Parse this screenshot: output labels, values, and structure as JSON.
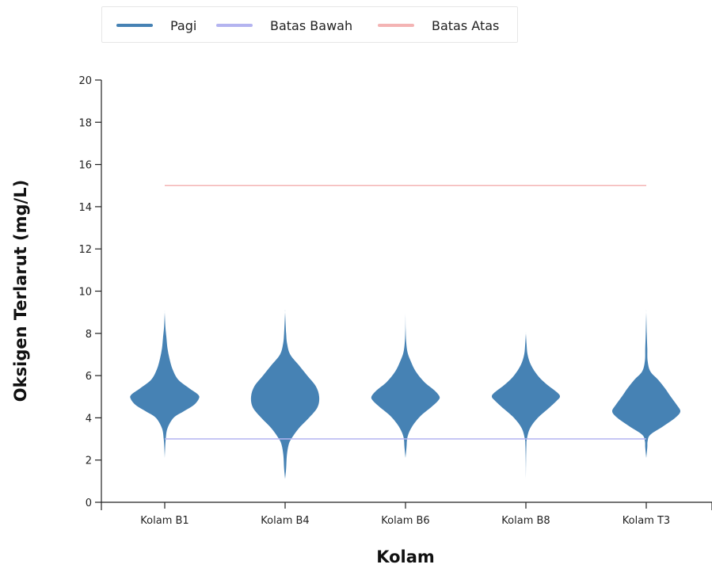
{
  "legend": {
    "items": [
      {
        "label": "Pagi",
        "color": "#4682b4"
      },
      {
        "label": "Batas Bawah",
        "color": "#b4b4f0"
      },
      {
        "label": "Batas Atas",
        "color": "#f4b4b4"
      }
    ]
  },
  "chart_data": {
    "type": "violin",
    "xlabel": "Kolam",
    "ylabel": "Oksigen Terlarut (mg/L)",
    "categories": [
      "Kolam B1",
      "Kolam B4",
      "Kolam B6",
      "Kolam B8",
      "Kolam T3"
    ],
    "ylim": [
      0,
      20
    ],
    "yticks": [
      0,
      2,
      4,
      6,
      8,
      10,
      12,
      14,
      16,
      18,
      20
    ],
    "series": [
      {
        "name": "Pagi",
        "color": "#4682b4",
        "violins": [
          {
            "category": "Kolam B1",
            "min": 2.1,
            "max": 9.0,
            "profile": [
              [
                2.1,
                0.0
              ],
              [
                2.5,
                0.01
              ],
              [
                3.0,
                0.03
              ],
              [
                3.5,
                0.08
              ],
              [
                4.0,
                0.26
              ],
              [
                4.3,
                0.55
              ],
              [
                4.6,
                0.85
              ],
              [
                4.9,
                1.0
              ],
              [
                5.1,
                0.98
              ],
              [
                5.4,
                0.72
              ],
              [
                5.8,
                0.4
              ],
              [
                6.3,
                0.23
              ],
              [
                6.8,
                0.14
              ],
              [
                7.3,
                0.08
              ],
              [
                7.8,
                0.05
              ],
              [
                8.3,
                0.02
              ],
              [
                9.0,
                0.0
              ]
            ]
          },
          {
            "category": "Kolam B4",
            "min": 1.1,
            "max": 9.0,
            "profile": [
              [
                1.1,
                0.0
              ],
              [
                1.6,
                0.03
              ],
              [
                2.2,
                0.05
              ],
              [
                2.7,
                0.1
              ],
              [
                3.0,
                0.18
              ],
              [
                3.5,
                0.4
              ],
              [
                4.0,
                0.7
              ],
              [
                4.5,
                0.95
              ],
              [
                5.0,
                1.0
              ],
              [
                5.5,
                0.9
              ],
              [
                6.0,
                0.65
              ],
              [
                6.5,
                0.4
              ],
              [
                7.0,
                0.15
              ],
              [
                7.5,
                0.06
              ],
              [
                8.0,
                0.03
              ],
              [
                9.0,
                0.0
              ]
            ]
          },
          {
            "category": "Kolam B6",
            "min": 2.1,
            "max": 9.0,
            "profile": [
              [
                2.1,
                0.0
              ],
              [
                2.6,
                0.03
              ],
              [
                3.1,
                0.06
              ],
              [
                3.6,
                0.2
              ],
              [
                4.1,
                0.45
              ],
              [
                4.5,
                0.75
              ],
              [
                4.8,
                0.95
              ],
              [
                5.0,
                1.0
              ],
              [
                5.3,
                0.85
              ],
              [
                5.7,
                0.55
              ],
              [
                6.2,
                0.3
              ],
              [
                6.7,
                0.15
              ],
              [
                7.1,
                0.06
              ],
              [
                7.6,
                0.02
              ],
              [
                8.2,
                0.005
              ],
              [
                9.0,
                0.0
              ]
            ]
          },
          {
            "category": "Kolam B8",
            "min": 1.1,
            "max": 8.0,
            "profile": [
              [
                1.1,
                0.0
              ],
              [
                2.0,
                0.005
              ],
              [
                2.7,
                0.015
              ],
              [
                3.0,
                0.03
              ],
              [
                3.5,
                0.12
              ],
              [
                4.0,
                0.35
              ],
              [
                4.5,
                0.7
              ],
              [
                4.8,
                0.9
              ],
              [
                5.0,
                1.0
              ],
              [
                5.2,
                0.92
              ],
              [
                5.6,
                0.6
              ],
              [
                6.0,
                0.35
              ],
              [
                6.5,
                0.15
              ],
              [
                7.0,
                0.05
              ],
              [
                7.5,
                0.02
              ],
              [
                8.0,
                0.0
              ]
            ]
          },
          {
            "category": "Kolam T3",
            "min": 2.1,
            "max": 9.0,
            "profile": [
              [
                2.1,
                0.0
              ],
              [
                2.6,
                0.03
              ],
              [
                2.9,
                0.04
              ],
              [
                3.2,
                0.12
              ],
              [
                3.6,
                0.5
              ],
              [
                4.0,
                0.85
              ],
              [
                4.3,
                1.0
              ],
              [
                4.6,
                0.9
              ],
              [
                5.0,
                0.72
              ],
              [
                5.4,
                0.55
              ],
              [
                5.8,
                0.35
              ],
              [
                6.2,
                0.12
              ],
              [
                6.7,
                0.04
              ],
              [
                7.3,
                0.03
              ],
              [
                8.0,
                0.015
              ],
              [
                9.0,
                0.0
              ]
            ]
          }
        ]
      },
      {
        "name": "Batas Bawah",
        "color": "#b4b4f0",
        "type": "line",
        "y": 3
      },
      {
        "name": "Batas Atas",
        "color": "#f4b4b4",
        "type": "line",
        "y": 15
      }
    ]
  }
}
